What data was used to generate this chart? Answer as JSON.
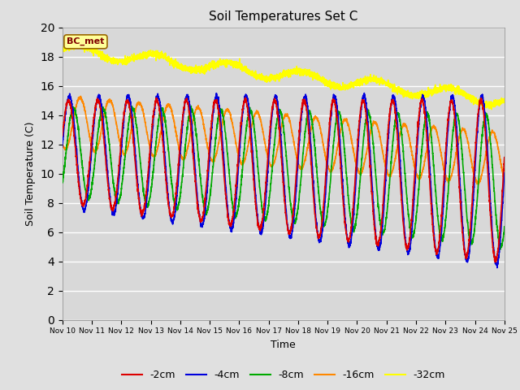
{
  "title": "Soil Temperatures Set C",
  "xlabel": "Time",
  "ylabel": "Soil Temperature (C)",
  "ylim": [
    0,
    20
  ],
  "yticks": [
    0,
    2,
    4,
    6,
    8,
    10,
    12,
    14,
    16,
    18,
    20
  ],
  "n_points": 3600,
  "annotation_text": "BC_met",
  "series": {
    "-2cm": {
      "color": "#dd0000",
      "lw": 1.2
    },
    "-4cm": {
      "color": "#0000dd",
      "lw": 1.2
    },
    "-8cm": {
      "color": "#00aa00",
      "lw": 1.2
    },
    "-16cm": {
      "color": "#ff8800",
      "lw": 1.2
    },
    "-32cm": {
      "color": "#ffff00",
      "lw": 1.2
    }
  },
  "x_tick_labels": [
    "Nov 10",
    "Nov 11",
    "Nov 12",
    "Nov 13",
    "Nov 14",
    "Nov 15",
    "Nov 16",
    "Nov 17",
    "Nov 18",
    "Nov 19",
    "Nov 20",
    "Nov 21",
    "Nov 22",
    "Nov 23",
    "Nov 24",
    "Nov 25"
  ]
}
